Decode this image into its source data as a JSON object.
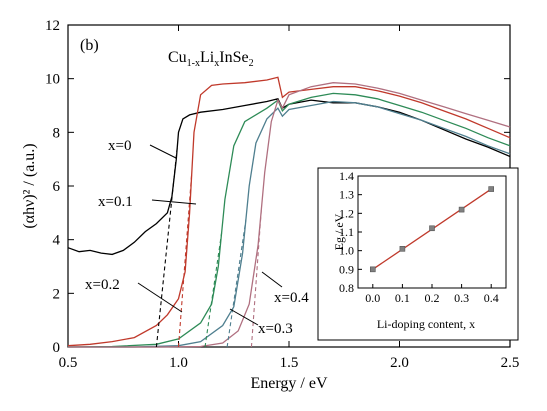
{
  "chart_data": [
    {
      "type": "line",
      "panel_label": "(b)",
      "title": "Cu1-xLixInSe2",
      "xlabel": "Energy / eV",
      "ylabel": "(αhν)² / (a.u.)",
      "xlim": [
        0.5,
        2.5
      ],
      "ylim": [
        0,
        12
      ],
      "xticks": [
        "0.5",
        "1.0",
        "1.5",
        "2.0",
        "2.5"
      ],
      "yticks": [
        "0",
        "2",
        "4",
        "6",
        "8",
        "10",
        "12"
      ],
      "grid": false,
      "series": [
        {
          "name": "x=0",
          "color": "#000000",
          "x": [
            0.5,
            0.55,
            0.6,
            0.65,
            0.7,
            0.75,
            0.8,
            0.85,
            0.9,
            0.95,
            0.97,
            0.99,
            1.0,
            1.02,
            1.05,
            1.1,
            1.2,
            1.3,
            1.4,
            1.45,
            1.47,
            1.5,
            1.6,
            1.7,
            1.8,
            1.9,
            2.0,
            2.1,
            2.2,
            2.3,
            2.4,
            2.5
          ],
          "y": [
            3.7,
            3.55,
            3.6,
            3.5,
            3.45,
            3.6,
            3.9,
            4.3,
            4.6,
            5.0,
            5.6,
            7.0,
            8.0,
            8.5,
            8.65,
            8.75,
            8.85,
            9.0,
            9.15,
            9.25,
            8.9,
            9.05,
            9.2,
            9.1,
            9.1,
            8.95,
            8.75,
            8.45,
            8.1,
            7.75,
            7.45,
            7.1
          ]
        },
        {
          "name": "x=0.1",
          "color": "#c0392b",
          "x": [
            0.5,
            0.6,
            0.7,
            0.8,
            0.9,
            0.95,
            1.0,
            1.03,
            1.05,
            1.07,
            1.1,
            1.15,
            1.2,
            1.3,
            1.4,
            1.45,
            1.47,
            1.5,
            1.6,
            1.7,
            1.8,
            1.9,
            2.0,
            2.1,
            2.2,
            2.3,
            2.4,
            2.5
          ],
          "y": [
            0.05,
            0.1,
            0.2,
            0.35,
            0.8,
            1.2,
            1.8,
            2.8,
            5.0,
            8.0,
            9.4,
            9.75,
            9.8,
            9.85,
            9.95,
            10.05,
            9.3,
            9.5,
            9.6,
            9.7,
            9.7,
            9.55,
            9.35,
            9.1,
            8.8,
            8.5,
            8.15,
            7.8
          ]
        },
        {
          "name": "x=0.2",
          "color": "#2e8b57",
          "x": [
            0.5,
            0.7,
            0.9,
            1.0,
            1.1,
            1.15,
            1.18,
            1.21,
            1.25,
            1.3,
            1.4,
            1.45,
            1.47,
            1.5,
            1.6,
            1.7,
            1.8,
            1.9,
            2.0,
            2.1,
            2.2,
            2.3,
            2.4,
            2.5
          ],
          "y": [
            0.0,
            0.02,
            0.1,
            0.3,
            0.9,
            1.6,
            3.0,
            5.5,
            7.5,
            8.4,
            8.9,
            9.2,
            8.8,
            9.05,
            9.3,
            9.45,
            9.4,
            9.25,
            9.0,
            8.75,
            8.45,
            8.15,
            7.8,
            7.5
          ]
        },
        {
          "name": "x=0.3",
          "color": "#4f7f8f",
          "x": [
            0.5,
            0.8,
            1.0,
            1.1,
            1.2,
            1.25,
            1.29,
            1.32,
            1.35,
            1.4,
            1.45,
            1.47,
            1.5,
            1.6,
            1.7,
            1.8,
            1.9,
            2.0,
            2.1,
            2.2,
            2.3,
            2.4,
            2.5
          ],
          "y": [
            0.0,
            0.0,
            0.05,
            0.2,
            0.8,
            1.5,
            3.5,
            6.0,
            7.6,
            8.5,
            8.9,
            8.6,
            8.85,
            9.0,
            9.15,
            9.1,
            8.95,
            8.7,
            8.45,
            8.15,
            7.85,
            7.5,
            7.2
          ]
        },
        {
          "name": "x=0.4",
          "color": "#b07080",
          "x": [
            0.5,
            0.9,
            1.1,
            1.2,
            1.27,
            1.32,
            1.36,
            1.39,
            1.42,
            1.45,
            1.47,
            1.5,
            1.6,
            1.7,
            1.8,
            1.9,
            2.0,
            2.1,
            2.2,
            2.3,
            2.4,
            2.5
          ],
          "y": [
            0.0,
            0.0,
            0.02,
            0.15,
            0.6,
            1.6,
            3.8,
            6.5,
            8.4,
            9.2,
            8.9,
            9.4,
            9.7,
            9.85,
            9.8,
            9.65,
            9.45,
            9.2,
            8.95,
            8.7,
            8.45,
            8.2
          ]
        }
      ],
      "tangent_intercepts": [
        {
          "name": "x=0",
          "eg": 0.9
        },
        {
          "name": "x=0.1",
          "eg": 1.0
        },
        {
          "name": "x=0.2",
          "eg": 1.12
        },
        {
          "name": "x=0.3",
          "eg": 1.22
        },
        {
          "name": "x=0.4",
          "eg": 1.33
        }
      ],
      "annotations": [
        "x=0",
        "x=0.1",
        "x=0.2",
        "x=0.3",
        "x=0.4"
      ]
    },
    {
      "type": "scatter",
      "inset": true,
      "xlabel": "Li-doping content, x",
      "ylabel": "Eg / eV",
      "xlim": [
        -0.05,
        0.45
      ],
      "ylim": [
        0.8,
        1.4
      ],
      "xticks": [
        "0.0",
        "0.1",
        "0.2",
        "0.3",
        "0.4"
      ],
      "yticks": [
        "0.8",
        "0.9",
        "1.0",
        "1.1",
        "1.2",
        "1.3",
        "1.4"
      ],
      "x": [
        0.0,
        0.1,
        0.2,
        0.3,
        0.4
      ],
      "y": [
        0.9,
        1.01,
        1.12,
        1.22,
        1.33
      ],
      "fit_color": "#c0392b",
      "marker_color": "#808080"
    }
  ]
}
